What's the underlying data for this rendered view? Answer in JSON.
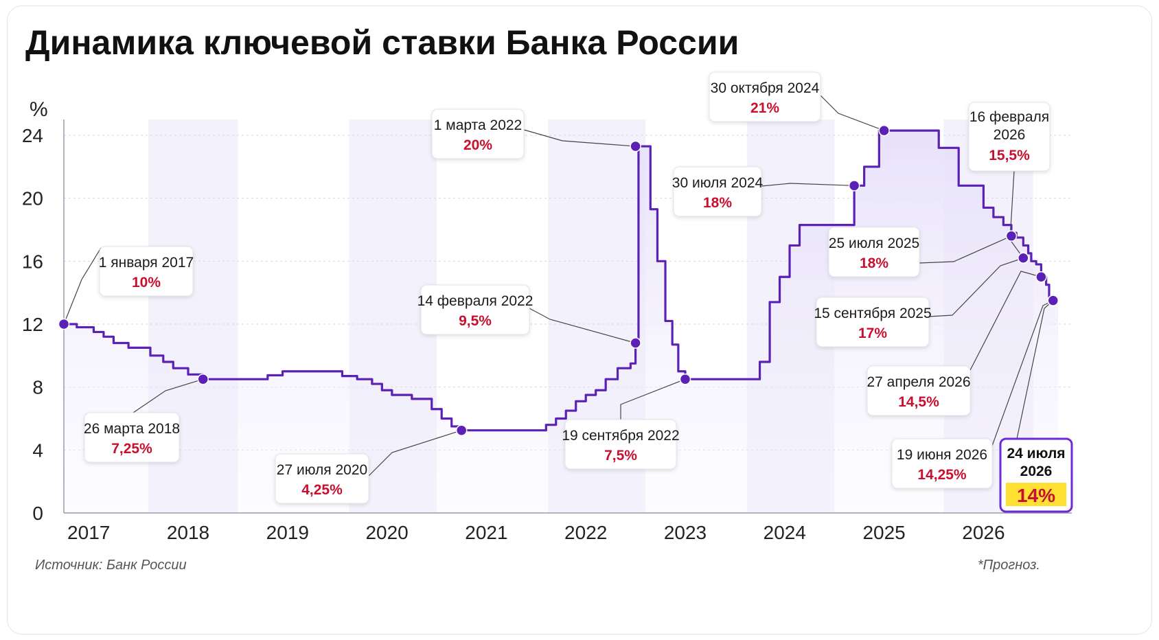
{
  "title": "Динамика ключевой ставки Банка России",
  "source": "Источник: Банк России",
  "footnote": "*Прогноз.",
  "chart_data": {
    "type": "line",
    "step": true,
    "title": "Динамика ключевой ставки Банка России",
    "ylabel": "%",
    "xlabel": "",
    "ylim": [
      0,
      24
    ],
    "yticks": [
      0,
      4,
      8,
      12,
      16,
      20,
      24
    ],
    "xlim": [
      2016.85,
      2026.85
    ],
    "xticks": [
      {
        "label": "2017",
        "value": 2017.1
      },
      {
        "label": "2018",
        "value": 2018.1
      },
      {
        "label": "2019",
        "value": 2019.1
      },
      {
        "label": "2020",
        "value": 2020.1
      },
      {
        "label": "2021",
        "value": 2021.1
      },
      {
        "label": "2022",
        "value": 2022.1
      },
      {
        "label": "2023",
        "value": 2023.1
      },
      {
        "label": "2024",
        "value": 2024.1
      },
      {
        "label": "2025",
        "value": 2025.1
      },
      {
        "label": "2026",
        "value": 2026.1
      }
    ],
    "grid": true,
    "shaded_years": [
      [
        2017.7,
        2018.6
      ],
      [
        2019.72,
        2020.6
      ],
      [
        2021.72,
        2022.7
      ],
      [
        2023.72,
        2024.6
      ],
      [
        2025.7,
        2026.6
      ]
    ],
    "series": [
      {
        "values": [
          [
            2016.85,
            12
          ],
          [
            2016.98,
            11.8
          ],
          [
            2017.15,
            11.5
          ],
          [
            2017.25,
            11.2
          ],
          [
            2017.35,
            10.8
          ],
          [
            2017.5,
            10.5
          ],
          [
            2017.6,
            10.5
          ],
          [
            2017.72,
            10.0
          ],
          [
            2017.85,
            9.6
          ],
          [
            2017.95,
            9.2
          ],
          [
            2018.1,
            8.8
          ],
          [
            2018.25,
            8.5
          ],
          [
            2018.7,
            8.5
          ],
          [
            2018.9,
            8.75
          ],
          [
            2019.05,
            9.0
          ],
          [
            2019.5,
            9.0
          ],
          [
            2019.65,
            8.7
          ],
          [
            2019.8,
            8.5
          ],
          [
            2019.95,
            8.2
          ],
          [
            2020.05,
            7.8
          ],
          [
            2020.15,
            7.5
          ],
          [
            2020.35,
            7.25
          ],
          [
            2020.55,
            6.6
          ],
          [
            2020.65,
            6.0
          ],
          [
            2020.75,
            5.5
          ],
          [
            2020.85,
            5.25
          ],
          [
            2021.6,
            5.25
          ],
          [
            2021.7,
            5.6
          ],
          [
            2021.8,
            6.0
          ],
          [
            2021.9,
            6.5
          ],
          [
            2022.0,
            7.1
          ],
          [
            2022.1,
            7.5
          ],
          [
            2022.2,
            7.8
          ],
          [
            2022.3,
            8.5
          ],
          [
            2022.42,
            9.2
          ],
          [
            2022.55,
            9.5
          ],
          [
            2022.6,
            10.8
          ],
          [
            2022.63,
            23.3
          ],
          [
            2022.7,
            23.3
          ],
          [
            2022.75,
            19.3
          ],
          [
            2022.82,
            16.0
          ],
          [
            2022.9,
            12.2
          ],
          [
            2022.97,
            10.7
          ],
          [
            2023.03,
            9.0
          ],
          [
            2023.1,
            8.5
          ],
          [
            2023.75,
            8.5
          ],
          [
            2023.85,
            9.6
          ],
          [
            2023.95,
            13.4
          ],
          [
            2024.05,
            15.0
          ],
          [
            2024.15,
            17.0
          ],
          [
            2024.25,
            18.3
          ],
          [
            2024.75,
            18.3
          ],
          [
            2024.8,
            20.8
          ],
          [
            2024.9,
            22.0
          ],
          [
            2025.05,
            24.3
          ],
          [
            2025.45,
            24.3
          ],
          [
            2025.65,
            23.2
          ],
          [
            2025.85,
            20.8
          ],
          [
            2026.1,
            19.4
          ],
          [
            2026.2,
            18.8
          ],
          [
            2026.3,
            18.3
          ],
          [
            2026.38,
            17.8
          ],
          [
            2026.43,
            17.5
          ],
          [
            2026.5,
            17.0
          ],
          [
            2026.55,
            16.5
          ],
          [
            2026.58,
            16.0
          ],
          [
            2026.63,
            15.8
          ],
          [
            2026.68,
            15.0
          ],
          [
            2026.73,
            14.5
          ],
          [
            2026.76,
            13.5
          ],
          [
            2026.85,
            13.5
          ]
        ]
      }
    ],
    "annotations": [
      {
        "date": "1 января 2017",
        "value": "10%",
        "point": [
          2016.85,
          12
        ]
      },
      {
        "date": "26 марта 2018",
        "value": "7,25%",
        "point": [
          2018.25,
          8.5
        ]
      },
      {
        "date": "27 июля 2020",
        "value": "4,25%",
        "point": [
          2020.85,
          5.25
        ]
      },
      {
        "date": "14 февраля 2022",
        "value": "9,5%",
        "point": [
          2022.6,
          10.8
        ]
      },
      {
        "date": "1 марта 2022",
        "value": "20%",
        "point": [
          2022.6,
          23.3
        ]
      },
      {
        "date": "19 сентября 2022",
        "value": "7,5%",
        "point": [
          2023.1,
          8.5
        ]
      },
      {
        "date": "30 июля 2024",
        "value": "18%",
        "point": [
          2024.8,
          20.8
        ]
      },
      {
        "date": "30 октября 2024",
        "value": "21%",
        "point": [
          2025.1,
          24.3
        ]
      },
      {
        "date": "25 июля 2025",
        "value": "18%",
        "point": [
          2026.38,
          17.6
        ]
      },
      {
        "date": "15 сентября 2025",
        "value": "17%",
        "point": [
          2026.5,
          16.2
        ]
      },
      {
        "date": "16 февраля 2026",
        "value": "15,5%",
        "point": [
          2026.5,
          16.2
        ]
      },
      {
        "date": "27 апреля 2026",
        "value": "14,5%",
        "point": [
          2026.68,
          15.0
        ]
      },
      {
        "date": "19 июня 2026",
        "value": "14,25%",
        "point": [
          2026.8,
          13.5
        ]
      },
      {
        "date": "24 июля 2026",
        "value": "14%",
        "point": [
          2026.8,
          13.5
        ],
        "highlight": true
      }
    ],
    "colors": {
      "line": "#5b21b6",
      "marker": "#5b21b6",
      "fill": "#ece8fb",
      "shade": "#f3f1fb",
      "value_text": "#c8102e",
      "highlight_bg": "#ffe033",
      "highlight_border": "#6d28d9"
    }
  }
}
